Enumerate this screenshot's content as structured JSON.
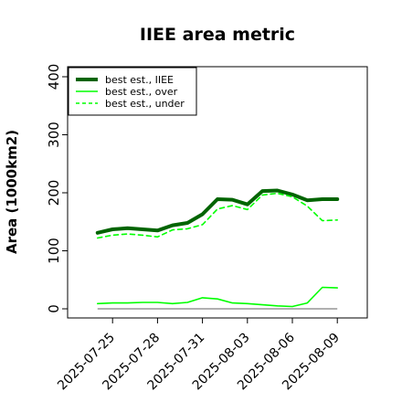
{
  "chart_data": {
    "type": "line",
    "title": "IIEE area metric",
    "xlabel": "",
    "ylabel": "Area (1000km2)",
    "ylim": [
      0,
      400
    ],
    "yticks": [
      0,
      100,
      200,
      300,
      400
    ],
    "xlim": [
      "2025-07-22",
      "2025-08-11"
    ],
    "xticks": [
      "2025-07-25",
      "2025-07-28",
      "2025-07-31",
      "2025-08-03",
      "2025-08-06",
      "2025-08-09"
    ],
    "grid": false,
    "legend_position": "top-left",
    "x": [
      "2025-07-24",
      "2025-07-25",
      "2025-07-26",
      "2025-07-27",
      "2025-07-28",
      "2025-07-29",
      "2025-07-30",
      "2025-07-31",
      "2025-08-01",
      "2025-08-02",
      "2025-08-03",
      "2025-08-04",
      "2025-08-05",
      "2025-08-06",
      "2025-08-07",
      "2025-08-08",
      "2025-08-09"
    ],
    "series": [
      {
        "name": "best est., IIEE",
        "color": "#006400",
        "style": "solid",
        "width": "thick",
        "values": [
          131,
          137,
          139,
          137,
          135,
          144,
          148,
          163,
          189,
          188,
          180,
          203,
          204,
          197,
          187,
          189,
          189
        ]
      },
      {
        "name": "best est., over",
        "color": "#00ff00",
        "style": "solid",
        "width": "normal",
        "values": [
          9,
          10,
          10,
          11,
          11,
          9,
          11,
          19,
          17,
          10,
          9,
          7,
          5,
          4,
          10,
          37,
          36
        ]
      },
      {
        "name": "best est., under",
        "color": "#00ff00",
        "style": "dashed",
        "width": "normal",
        "values": [
          122,
          127,
          129,
          127,
          124,
          136,
          138,
          145,
          172,
          178,
          171,
          196,
          199,
          193,
          177,
          152,
          153
        ]
      }
    ],
    "reference_line": {
      "y": 0,
      "color": "#808080"
    }
  }
}
